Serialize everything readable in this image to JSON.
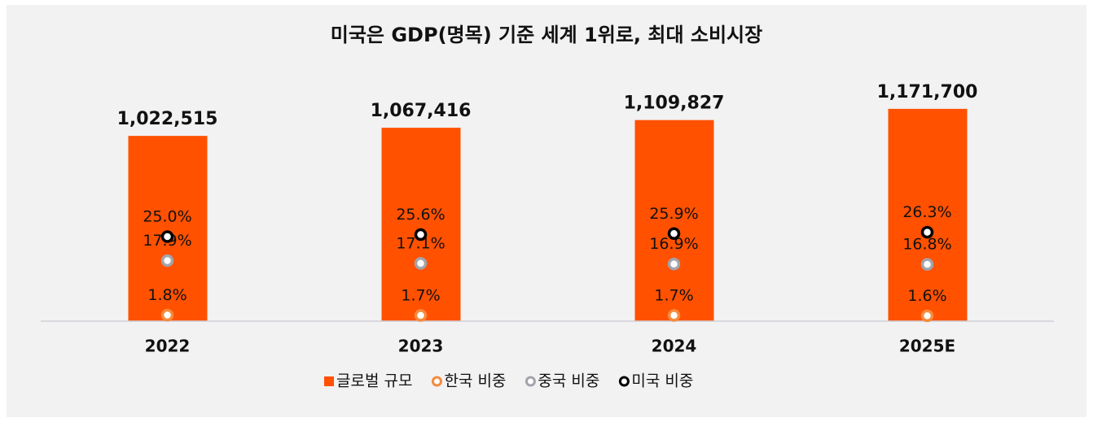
{
  "chart_data": {
    "type": "bar",
    "title": "미국은 GDP(명목) 기준 세계 1위로, 최대 소비시장",
    "categories": [
      "2022",
      "2023",
      "2024",
      "2025E"
    ],
    "ylim": [
      0,
      1400000
    ],
    "y2lim": [
      0,
      75
    ],
    "series": [
      {
        "name": "글로벌 규모",
        "type": "bar",
        "color": "#ff5100",
        "values": [
          1022515,
          1067416,
          1109827,
          1171700
        ],
        "value_labels": [
          "1,022,515",
          "1,067,416",
          "1,109,827",
          "1,171,700"
        ]
      },
      {
        "name": "한국 비중",
        "type": "marker",
        "axis": "y2",
        "color": "#f58a3c",
        "values": [
          1.8,
          1.7,
          1.7,
          1.6
        ],
        "value_labels": [
          "1.8%",
          "1.7%",
          "1.7%",
          "1.6%"
        ]
      },
      {
        "name": "중국 비중",
        "type": "marker",
        "axis": "y2",
        "color": "#a3a3ab",
        "values": [
          17.9,
          17.1,
          16.9,
          16.8
        ],
        "value_labels": [
          "17.9%",
          "17.1%",
          "16.9%",
          "16.8%"
        ]
      },
      {
        "name": "미국 비중",
        "type": "marker",
        "axis": "y2",
        "color": "#000000",
        "values": [
          25.0,
          25.6,
          25.9,
          26.3
        ],
        "value_labels": [
          "25.0%",
          "25.6%",
          "25.9%",
          "26.3%"
        ]
      }
    ]
  }
}
